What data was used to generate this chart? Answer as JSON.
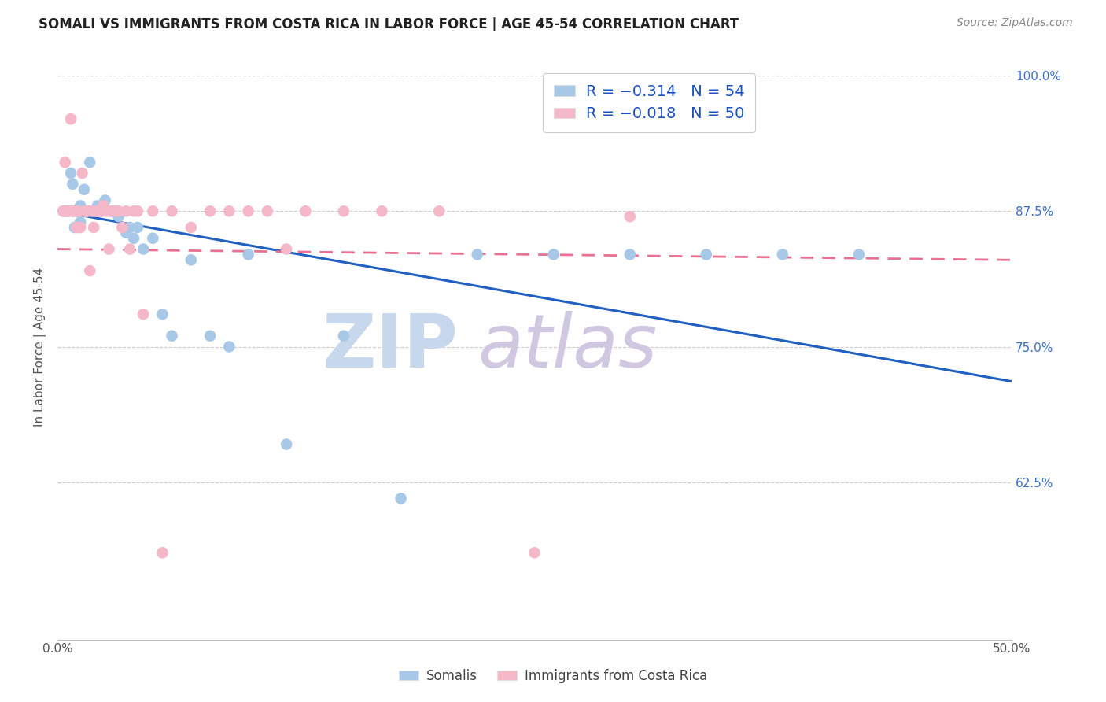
{
  "title": "SOMALI VS IMMIGRANTS FROM COSTA RICA IN LABOR FORCE | AGE 45-54 CORRELATION CHART",
  "source": "Source: ZipAtlas.com",
  "ylabel": "In Labor Force | Age 45-54",
  "xlim": [
    0.0,
    0.5
  ],
  "ylim": [
    0.48,
    1.02
  ],
  "xticks": [
    0.0,
    0.1,
    0.2,
    0.3,
    0.4,
    0.5
  ],
  "xticklabels": [
    "0.0%",
    "",
    "",
    "",
    "",
    "50.0%"
  ],
  "yticks_right": [
    0.625,
    0.75,
    0.875,
    1.0
  ],
  "ytick_labels_right": [
    "62.5%",
    "75.0%",
    "87.5%",
    "100.0%"
  ],
  "legend_labels": [
    "Somalis",
    "Immigrants from Costa Rica"
  ],
  "legend_r": [
    "R = −0.314",
    "R = −0.018"
  ],
  "legend_n": [
    "N = 54",
    "N = 50"
  ],
  "blue_color": "#a8c8e8",
  "pink_color": "#f5b8c8",
  "blue_line_color": "#2060c0",
  "pink_line_color": "#e87090",
  "blue_line_x0": 0.0,
  "blue_line_y0": 0.875,
  "blue_line_x1": 0.5,
  "blue_line_y1": 0.718,
  "pink_line_x0": 0.0,
  "pink_line_y0": 0.84,
  "pink_line_x1": 0.5,
  "pink_line_y1": 0.83,
  "somali_x": [
    0.003,
    0.004,
    0.005,
    0.006,
    0.007,
    0.008,
    0.008,
    0.009,
    0.01,
    0.01,
    0.011,
    0.011,
    0.012,
    0.012,
    0.013,
    0.014,
    0.014,
    0.015,
    0.015,
    0.016,
    0.017,
    0.018,
    0.019,
    0.02,
    0.021,
    0.022,
    0.023,
    0.025,
    0.026,
    0.028,
    0.03,
    0.032,
    0.034,
    0.036,
    0.038,
    0.04,
    0.042,
    0.045,
    0.05,
    0.055,
    0.06,
    0.07,
    0.08,
    0.09,
    0.1,
    0.12,
    0.15,
    0.18,
    0.22,
    0.26,
    0.3,
    0.34,
    0.38,
    0.42
  ],
  "somali_y": [
    0.875,
    0.875,
    0.875,
    0.875,
    0.91,
    0.9,
    0.875,
    0.86,
    0.875,
    0.875,
    0.875,
    0.86,
    0.88,
    0.865,
    0.875,
    0.895,
    0.875,
    0.875,
    0.875,
    0.875,
    0.92,
    0.875,
    0.875,
    0.875,
    0.88,
    0.875,
    0.875,
    0.885,
    0.875,
    0.875,
    0.875,
    0.87,
    0.86,
    0.855,
    0.86,
    0.85,
    0.86,
    0.84,
    0.85,
    0.78,
    0.76,
    0.83,
    0.76,
    0.75,
    0.835,
    0.66,
    0.76,
    0.61,
    0.835,
    0.835,
    0.835,
    0.835,
    0.835,
    0.835
  ],
  "costa_rica_x": [
    0.003,
    0.004,
    0.005,
    0.006,
    0.007,
    0.008,
    0.009,
    0.01,
    0.01,
    0.011,
    0.012,
    0.013,
    0.014,
    0.015,
    0.016,
    0.017,
    0.018,
    0.019,
    0.02,
    0.021,
    0.022,
    0.023,
    0.024,
    0.025,
    0.026,
    0.027,
    0.028,
    0.03,
    0.032,
    0.034,
    0.036,
    0.038,
    0.04,
    0.042,
    0.045,
    0.05,
    0.055,
    0.06,
    0.07,
    0.08,
    0.09,
    0.1,
    0.11,
    0.12,
    0.13,
    0.15,
    0.17,
    0.2,
    0.25,
    0.3
  ],
  "costa_rica_y": [
    0.875,
    0.92,
    0.875,
    0.875,
    0.96,
    0.875,
    0.875,
    0.875,
    0.86,
    0.875,
    0.86,
    0.91,
    0.875,
    0.875,
    0.875,
    0.82,
    0.875,
    0.86,
    0.875,
    0.875,
    0.875,
    0.875,
    0.88,
    0.875,
    0.875,
    0.84,
    0.875,
    0.875,
    0.875,
    0.86,
    0.875,
    0.84,
    0.875,
    0.875,
    0.78,
    0.875,
    0.56,
    0.875,
    0.86,
    0.875,
    0.875,
    0.875,
    0.875,
    0.84,
    0.875,
    0.875,
    0.875,
    0.875,
    0.56,
    0.87
  ]
}
